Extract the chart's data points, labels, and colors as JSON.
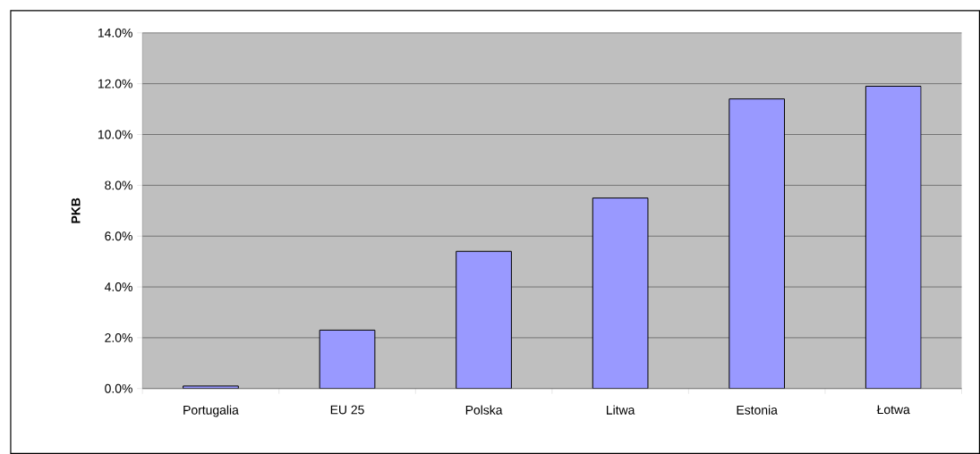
{
  "chart_data": {
    "type": "bar",
    "ylabel": "PKB",
    "categories": [
      "Portugalia",
      "EU 25",
      "Polska",
      "Litwa",
      "Estonia",
      "Łotwa"
    ],
    "values": [
      0.1,
      2.3,
      5.4,
      7.5,
      11.4,
      11.9
    ],
    "color": "#9999ff",
    "ylim": [
      0,
      14
    ],
    "yticks": [
      {
        "value": 0,
        "label": "0.0%"
      },
      {
        "value": 2,
        "label": "2.0%"
      },
      {
        "value": 4,
        "label": "4.0%"
      },
      {
        "value": 6,
        "label": "6.0%"
      },
      {
        "value": 8,
        "label": "8.0%"
      },
      {
        "value": 10,
        "label": "10.0%"
      },
      {
        "value": 12,
        "label": "12.0%"
      },
      {
        "value": 14,
        "label": "14.0%"
      }
    ],
    "grid": "y"
  }
}
